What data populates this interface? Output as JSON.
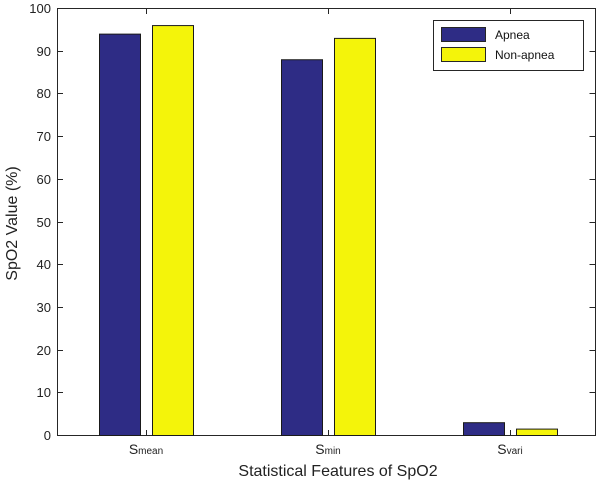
{
  "chart_data": {
    "type": "bar",
    "title": "",
    "xlabel": "Statistical Features of SpO2",
    "ylabel": "SpO2  Value (%)",
    "ylim": [
      0,
      100
    ],
    "yticks": [
      0,
      10,
      20,
      30,
      40,
      50,
      60,
      70,
      80,
      90,
      100
    ],
    "categories": [
      {
        "main": "S",
        "sub": "mean"
      },
      {
        "main": "S",
        "sub": "min"
      },
      {
        "main": "S",
        "sub": "vari"
      }
    ],
    "series": [
      {
        "name": "Apnea",
        "color": "#2e2c85",
        "values": [
          94,
          88,
          3
        ]
      },
      {
        "name": "Non-apnea",
        "color": "#f4f40a",
        "values": [
          96,
          93,
          1.5
        ]
      }
    ],
    "legend_position": "top-right",
    "grid": false
  }
}
